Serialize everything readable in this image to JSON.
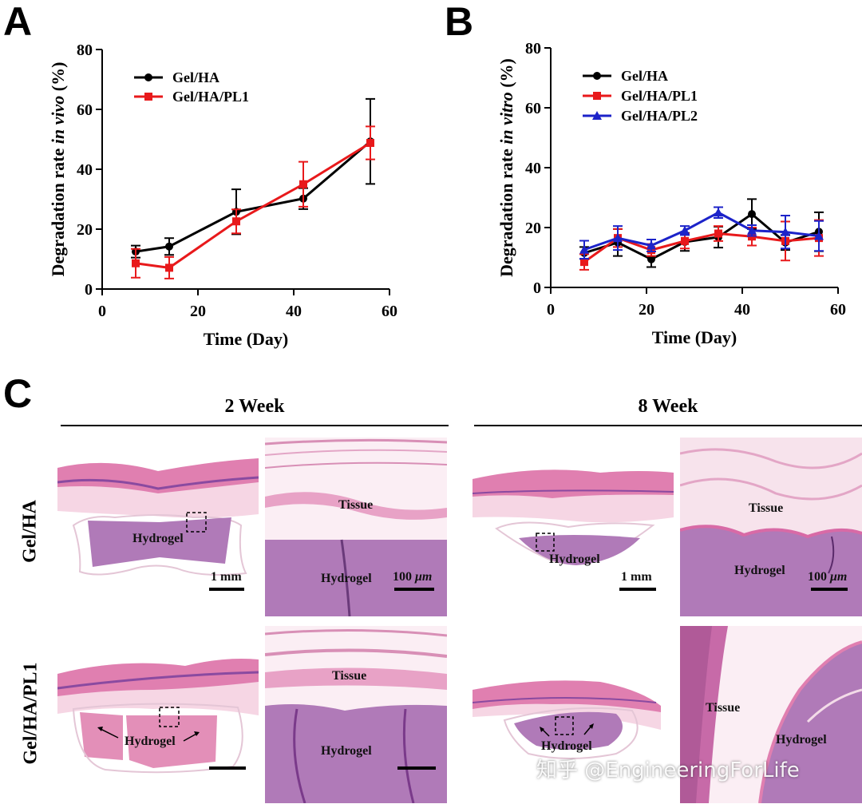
{
  "panels": {
    "a": "A",
    "b": "B",
    "c": "C"
  },
  "colors": {
    "black": "#000000",
    "red": "#e8191b",
    "blue": "#1c23c9",
    "tissue": "#f2c4d9",
    "hydrogel": "#b07ab8",
    "epidermis": "#9a5aa8"
  },
  "chart_data": [
    {
      "id": "A",
      "type": "line",
      "title": "",
      "xlabel": "Time (Day)",
      "ylabel_prefix": "Degradation rate ",
      "ylabel_italic": "in vivo",
      "ylabel_suffix": " (%)",
      "xlim": [
        0,
        60
      ],
      "ylim": [
        0,
        80
      ],
      "xticks": [
        0,
        20,
        40,
        60
      ],
      "yticks": [
        0,
        20,
        40,
        60,
        80
      ],
      "legend_position": "top-left",
      "x": [
        7,
        14,
        28,
        42,
        56
      ],
      "series": [
        {
          "name": "Gel/HA",
          "color": "#000000",
          "marker": "circle",
          "values": [
            12.5,
            14.2,
            25.8,
            30.2,
            49.3
          ],
          "errors": [
            2.0,
            2.8,
            7.5,
            3.5,
            14.2
          ]
        },
        {
          "name": "Gel/HA/PL1",
          "color": "#e8191b",
          "marker": "square",
          "values": [
            8.6,
            7.1,
            22.6,
            35.0,
            48.8
          ],
          "errors": [
            4.8,
            3.6,
            4.0,
            7.5,
            5.5
          ]
        }
      ]
    },
    {
      "id": "B",
      "type": "line",
      "title": "",
      "xlabel": "Time (Day)",
      "ylabel_prefix": "Degradation rate ",
      "ylabel_italic": "in vitro",
      "ylabel_suffix": " (%)",
      "xlim": [
        0,
        60
      ],
      "ylim": [
        0,
        80
      ],
      "xticks": [
        0,
        20,
        40,
        60
      ],
      "yticks": [
        0,
        20,
        40,
        60,
        80
      ],
      "legend_position": "top-left",
      "x": [
        7,
        14,
        21,
        28,
        35,
        42,
        49,
        56
      ],
      "series": [
        {
          "name": "Gel/HA",
          "color": "#000000",
          "marker": "circle",
          "values": [
            11.5,
            15.0,
            9.4,
            15.2,
            16.8,
            24.5,
            15.0,
            18.6
          ],
          "errors": [
            2.0,
            4.5,
            2.6,
            3.0,
            3.5,
            5.0,
            2.5,
            6.5
          ]
        },
        {
          "name": "Gel/HA/PL1",
          "color": "#e8191b",
          "marker": "square",
          "values": [
            8.5,
            16.5,
            12.5,
            15.5,
            18.0,
            17.0,
            15.5,
            16.5
          ],
          "errors": [
            2.6,
            3.0,
            2.0,
            2.5,
            2.5,
            3.0,
            6.5,
            6.0
          ]
        },
        {
          "name": "Gel/HA/PL2",
          "color": "#1c23c9",
          "marker": "triangle",
          "values": [
            12.6,
            16.5,
            14.0,
            19.0,
            25.0,
            19.0,
            18.5,
            17.2
          ],
          "errors": [
            3.0,
            4.0,
            2.0,
            1.5,
            1.8,
            1.8,
            5.5,
            5.0
          ]
        }
      ]
    }
  ],
  "histology": {
    "week_2": "2 Week",
    "week_8": "8 Week",
    "row_gel_ha": "Gel/HA",
    "row_gel_ha_pl1": "Gel/HA/PL1",
    "tissue": "Tissue",
    "hydrogel": "Hydrogel",
    "scale_1mm": "1 mm",
    "scale_100um_num": "100 ",
    "scale_100um_unit": "μm"
  },
  "watermark": "知乎 @EngineeringForLife"
}
